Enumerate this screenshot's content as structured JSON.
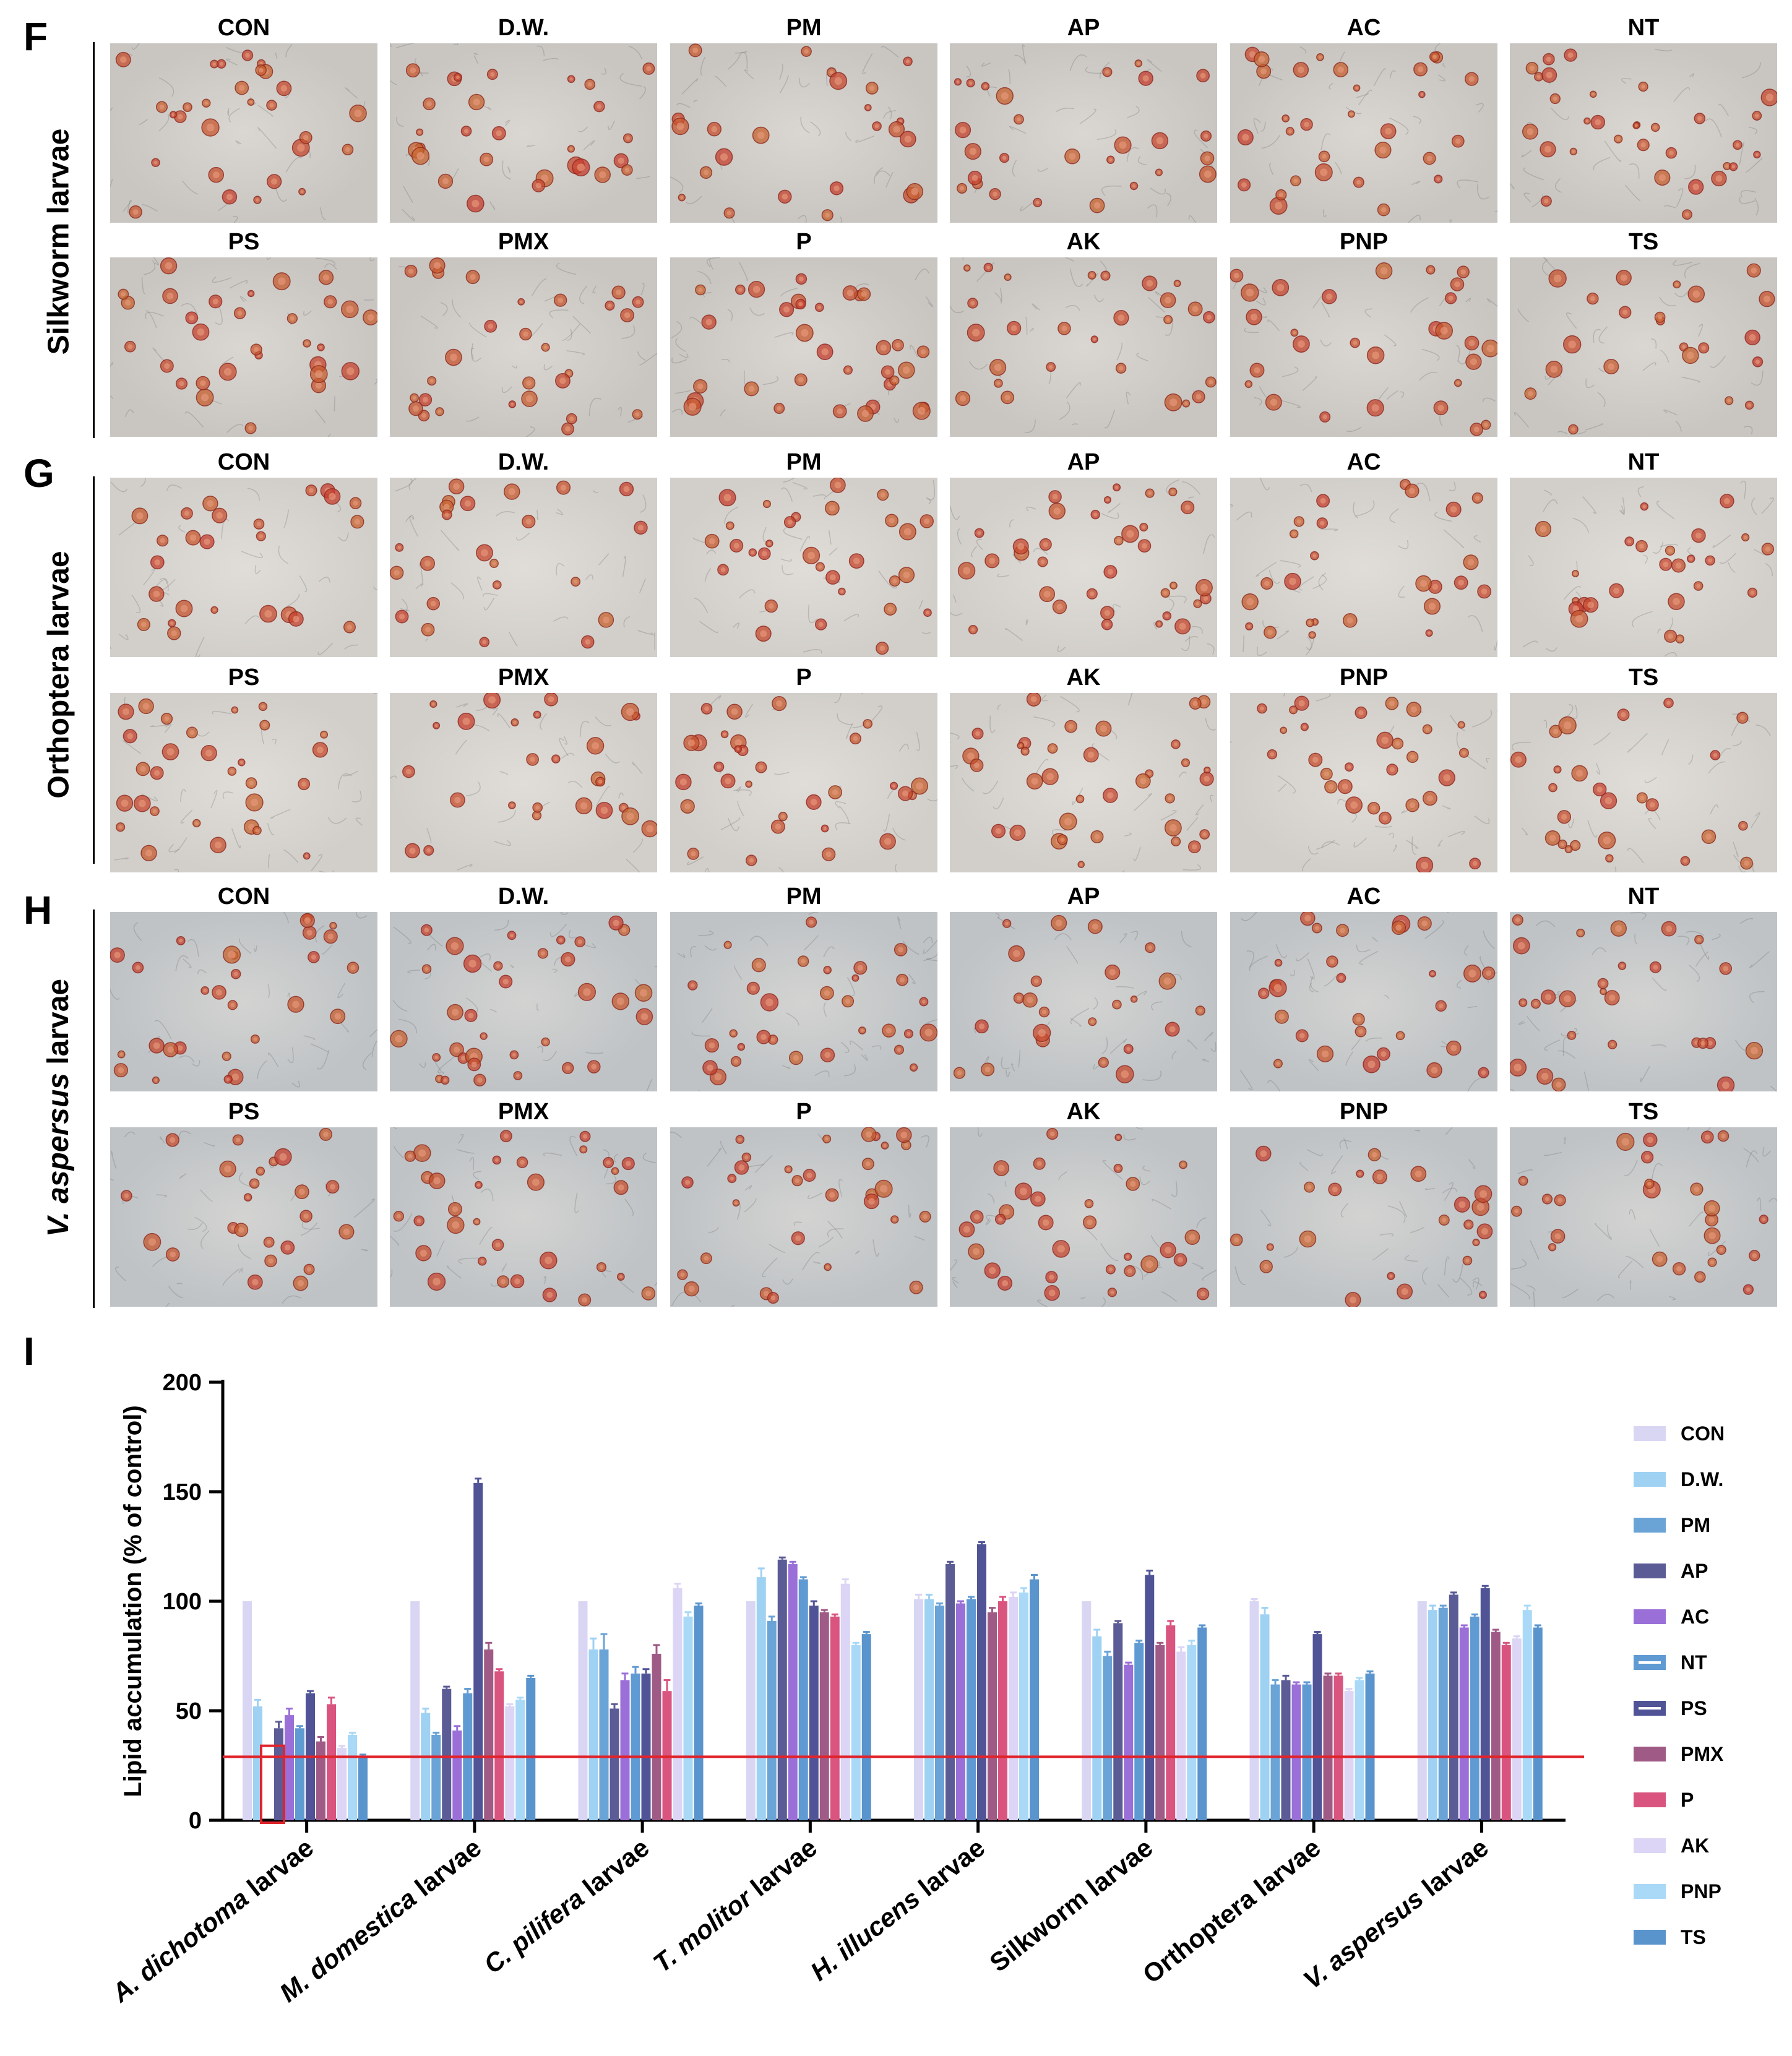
{
  "panels": [
    {
      "letter": "F",
      "row_label": "Silkworm larvae",
      "row_label_italic": "",
      "row_label_rest": "Silkworm larvae",
      "bg": [
        "#c9c6c2",
        "#dad6d1"
      ]
    },
    {
      "letter": "G",
      "row_label": "Orthoptera larvae",
      "row_label_italic": "",
      "row_label_rest": "Orthoptera larvae",
      "bg": [
        "#d2cfca",
        "#e0ddd8"
      ]
    },
    {
      "letter": "H",
      "row_label": "V. aspersus larvae",
      "row_label_italic": "V. aspersus",
      "row_label_rest": " larvae",
      "bg": [
        "#bfc3c6",
        "#d3d3d1"
      ]
    }
  ],
  "micrograph_labels_top": [
    "CON",
    "D.W.",
    "PM",
    "AP",
    "AC",
    "NT"
  ],
  "micrograph_labels_bottom": [
    "PS",
    "PMX",
    "P",
    "AK",
    "PNP",
    "TS"
  ],
  "chart_panel_letter": "I",
  "chart_data": {
    "type": "bar",
    "title": "",
    "ylabel": "Lipid accumulation (% of control)",
    "xlabel": "",
    "ylim": [
      0,
      200
    ],
    "yticks": [
      "0",
      "50",
      "100",
      "150",
      "200"
    ],
    "reference_line": 29,
    "categories": [
      {
        "italic": "A. dichotoma",
        "rest": " larvae"
      },
      {
        "italic": "M. domestica",
        "rest": " larvae"
      },
      {
        "italic": "C. pilifera",
        "rest": " larvae"
      },
      {
        "italic": "T. molitor",
        "rest": " larvae"
      },
      {
        "italic": "H. illucens",
        "rest": " larvae"
      },
      {
        "italic": "",
        "rest": "Silkworm larvae"
      },
      {
        "italic": "",
        "rest": "Orthoptera larvae"
      },
      {
        "italic": "V. aspersus",
        "rest": " larvae"
      }
    ],
    "series": [
      {
        "name": "CON",
        "color": "#d9d6f4",
        "values": [
          100,
          100,
          100,
          100,
          101,
          100,
          100,
          100
        ],
        "errors": [
          0,
          0,
          0,
          0,
          2,
          0,
          1,
          0
        ]
      },
      {
        "name": "D.W.",
        "color": "#9fd1f3",
        "values": [
          52,
          49,
          78,
          111,
          101,
          84,
          94,
          96
        ],
        "errors": [
          3,
          2,
          5,
          4,
          2,
          3,
          3,
          2
        ]
      },
      {
        "name": "PM",
        "color": "#6aa3d6",
        "values": [
          0,
          39,
          78,
          91,
          98,
          75,
          62,
          97
        ],
        "errors": [
          0,
          1,
          7,
          2,
          1,
          2,
          2,
          1
        ]
      },
      {
        "name": "AP",
        "color": "#5b5b96",
        "values": [
          42,
          60,
          51,
          119,
          117,
          90,
          64,
          103
        ],
        "errors": [
          3,
          1,
          2,
          1,
          1,
          1,
          2,
          1
        ]
      },
      {
        "name": "AC",
        "color": "#9b6fd8",
        "values": [
          48,
          41,
          64,
          117,
          99,
          71,
          62,
          88
        ],
        "errors": [
          3,
          2,
          3,
          1,
          1,
          1,
          1,
          1
        ]
      },
      {
        "name": "NT",
        "color": "#5f9ad3",
        "values": [
          42,
          58,
          67,
          110,
          101,
          81,
          62,
          93
        ],
        "errors": [
          1,
          2,
          3,
          1,
          1,
          1,
          1,
          1
        ]
      },
      {
        "name": "PS",
        "color": "#505497",
        "values": [
          58,
          154,
          67,
          98,
          126,
          112,
          85,
          106
        ],
        "errors": [
          1,
          2,
          2,
          2,
          1,
          2,
          1,
          1
        ]
      },
      {
        "name": "PMX",
        "color": "#9f5b86",
        "values": [
          36,
          78,
          76,
          95,
          95,
          80,
          66,
          86
        ],
        "errors": [
          2,
          3,
          4,
          1,
          2,
          1,
          1,
          1
        ]
      },
      {
        "name": "P",
        "color": "#d9547f",
        "values": [
          53,
          68,
          59,
          93,
          100,
          89,
          66,
          80
        ],
        "errors": [
          3,
          1,
          5,
          1,
          2,
          2,
          1,
          1
        ]
      },
      {
        "name": "AK",
        "color": "#dcd5f5",
        "values": [
          33,
          52,
          106,
          108,
          102,
          77,
          59,
          83
        ],
        "errors": [
          1,
          1,
          2,
          2,
          2,
          2,
          1,
          1
        ]
      },
      {
        "name": "PNP",
        "color": "#a9d9f7",
        "values": [
          39,
          55,
          93,
          80,
          104,
          80,
          64,
          96
        ],
        "errors": [
          1,
          1,
          2,
          1,
          2,
          2,
          1,
          2
        ]
      },
      {
        "name": "TS",
        "color": "#5a94cd",
        "values": [
          29,
          65,
          98,
          85,
          110,
          88,
          67,
          88
        ],
        "errors": [
          1,
          1,
          1,
          1,
          2,
          1,
          1,
          1
        ]
      }
    ],
    "highlight_box": {
      "category_index": 0,
      "series_index": 2
    }
  }
}
